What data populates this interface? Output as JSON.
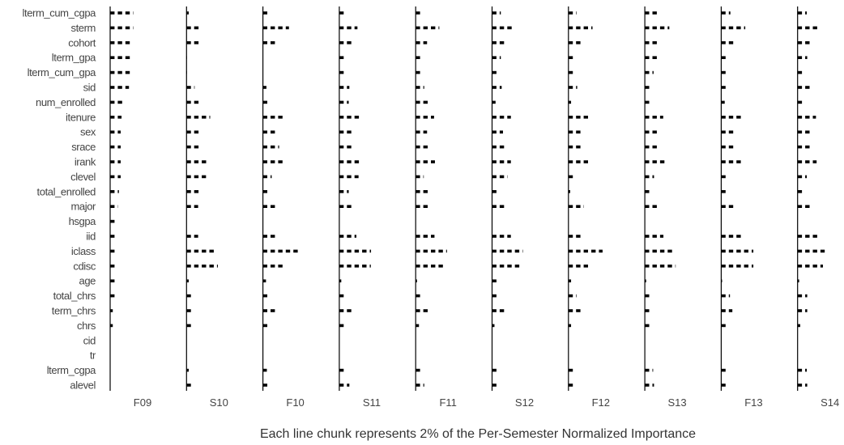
{
  "chart_data": {
    "type": "bar",
    "caption": "Each line chunk represents 2% of the Per-Semester Normalized Importance",
    "chunk_size_percent": 2,
    "features": [
      "lterm_cum_cgpa",
      "sterm",
      "cohort",
      "lterm_gpa",
      "lterm_cum_gpa",
      "sid",
      "num_enrolled",
      "itenure",
      "sex",
      "srace",
      "irank",
      "clevel",
      "total_enrolled",
      "major",
      "hsgpa",
      "iid",
      "iclass",
      "cdisc",
      "age",
      "total_chrs",
      "term_chrs",
      "chrs",
      "cid",
      "tr",
      "lterm_cgpa",
      "alevel"
    ],
    "semesters": [
      {
        "name": "F09",
        "values": [
          10.6,
          10.6,
          10.2,
          10.2,
          9.8,
          8.6,
          5.8,
          5.2,
          4.8,
          4.8,
          4.8,
          4.8,
          4.0,
          3.6,
          3.2,
          3.2,
          3.2,
          3.2,
          2.8,
          2.4,
          1.2,
          1.2,
          0,
          0,
          0,
          0
        ]
      },
      {
        "name": "S10",
        "values": [
          1.0,
          6.4,
          5.9,
          0.2,
          0.2,
          3.7,
          6.4,
          10.8,
          6.0,
          6.4,
          10.4,
          8.9,
          6.4,
          5.3,
          0,
          5.3,
          12.9,
          14.3,
          1.0,
          3.3,
          3.3,
          2.0,
          0,
          0,
          1.0,
          3.1
        ]
      },
      {
        "name": "F10",
        "values": [
          2.2,
          11.9,
          7.0,
          0,
          0,
          1.6,
          2.6,
          9.2,
          7.0,
          7.4,
          9.1,
          4.0,
          2.9,
          6.8,
          0,
          6.6,
          17.2,
          9.4,
          1.4,
          3.3,
          6.2,
          2.0,
          0,
          0,
          1.8,
          3.3
        ]
      },
      {
        "name": "S11",
        "values": [
          3.1,
          8.3,
          5.6,
          3.4,
          2.6,
          4.6,
          4.3,
          9.8,
          5.9,
          6.2,
          9.1,
          8.8,
          4.3,
          5.9,
          0,
          7.8,
          14.5,
          14.4,
          0.9,
          2.4,
          5.9,
          3.0,
          0,
          0,
          3.1,
          4.6
        ]
      },
      {
        "name": "F11",
        "values": [
          2.9,
          10.8,
          5.2,
          3.1,
          2.4,
          3.9,
          5.8,
          8.4,
          5.2,
          5.6,
          8.8,
          3.7,
          5.7,
          5.8,
          0,
          8.6,
          14.3,
          13.1,
          0.6,
          2.8,
          5.8,
          1.5,
          0,
          0,
          2.8,
          3.9
        ]
      },
      {
        "name": "S12",
        "values": [
          4.0,
          10.4,
          5.6,
          4.0,
          2.6,
          4.4,
          1.6,
          8.6,
          5.0,
          5.5,
          8.6,
          7.1,
          2.6,
          5.8,
          0,
          8.6,
          14.1,
          13.8,
          2.0,
          3.3,
          6.3,
          1.1,
          0,
          0,
          3.2,
          3.2
        ]
      },
      {
        "name": "F12",
        "values": [
          3.7,
          11.0,
          6.6,
          3.4,
          2.3,
          4.0,
          1.2,
          9.2,
          6.5,
          6.9,
          9.1,
          3.5,
          0.8,
          7.1,
          0,
          6.2,
          15.6,
          9.0,
          1.2,
          3.7,
          5.9,
          1.2,
          0,
          0,
          2.8,
          3.5
        ]
      },
      {
        "name": "S13",
        "values": [
          5.5,
          11.2,
          5.6,
          5.6,
          4.0,
          2.1,
          2.2,
          8.4,
          6.0,
          6.3,
          9.3,
          4.2,
          3.0,
          6.3,
          0,
          8.5,
          13.5,
          14.1,
          0.6,
          3.4,
          3.5,
          2.3,
          0,
          0,
          3.8,
          4.2
        ]
      },
      {
        "name": "F13",
        "values": [
          4.2,
          11.0,
          5.7,
          3.4,
          3.4,
          3.4,
          1.6,
          10.3,
          5.5,
          5.5,
          10.3,
          3.4,
          2.8,
          5.5,
          0,
          10.3,
          14.7,
          14.7,
          0.4,
          4.0,
          5.1,
          2.2,
          0,
          0,
          3.4,
          2.8
        ]
      },
      {
        "name": "S14",
        "values": [
          4.2,
          10.3,
          5.5,
          4.4,
          2.9,
          6.0,
          2.2,
          8.4,
          5.9,
          6.2,
          8.7,
          4.2,
          2.1,
          6.0,
          0,
          9.8,
          12.4,
          11.6,
          0.7,
          4.4,
          4.4,
          1.2,
          0,
          0,
          4.2,
          4.4
        ]
      }
    ]
  }
}
